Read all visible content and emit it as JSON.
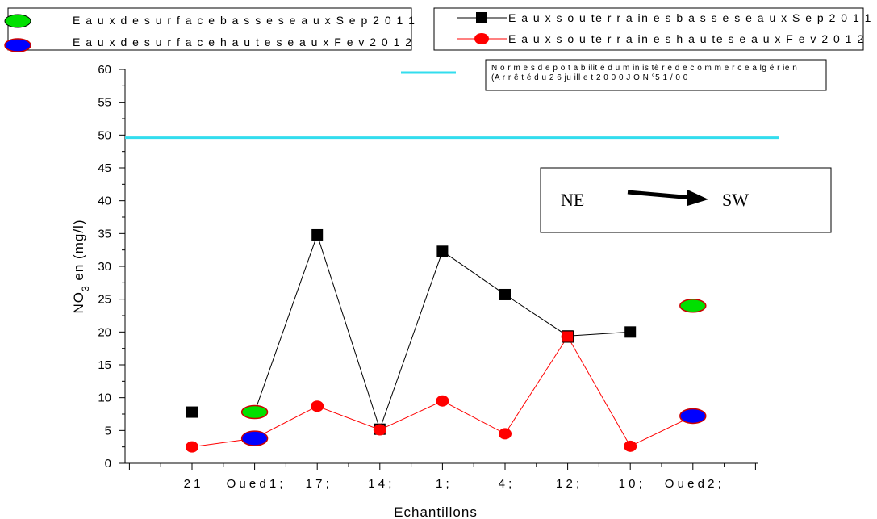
{
  "chart_data": {
    "type": "line",
    "ylabel_main": "NO",
    "ylabel_sub": "3",
    "ylabel_rest": " en (mg/l)",
    "xlabel": "Echantillons",
    "ylim": [
      0,
      60
    ],
    "y_ticks": [
      "0",
      "5",
      "10",
      "15",
      "20",
      "25",
      "30",
      "35",
      "40",
      "45",
      "50",
      "55",
      "60"
    ],
    "categories": [
      "21",
      "Oued 1;",
      "17;",
      "14;",
      "1;",
      "4;",
      "12;",
      "10;",
      "Oued 2;"
    ],
    "x_tick_labels": [
      "2 1",
      "O u e d  1 ;",
      "1 7 ;",
      "1 4 ;",
      "1 ;",
      "4 ;",
      "1 2 ;",
      "1 0 ;",
      "O u e d  2 ;"
    ],
    "series": [
      {
        "name": "E a u x  s o u te r r a in e s  b a s s e s  e a u x  S e p  2 0 1 1",
        "marker": "square",
        "color": "#000000",
        "values": [
          7.8,
          7.8,
          34.8,
          5.2,
          32.3,
          25.7,
          19.4,
          20.0,
          null
        ]
      },
      {
        "name": "E a u x  s o u te r r a in e s  h a u te s  e a u x  F e v  2 0 1 2",
        "marker": "circle",
        "color": "#ff0000",
        "values": [
          2.5,
          3.8,
          8.7,
          5.1,
          9.5,
          4.5,
          19.3,
          2.6,
          7.2
        ]
      },
      {
        "name": "E a u x  d e  s u r f a c e  b a s s e s  e a u x  S e p  2 0 1 1",
        "marker": "ellipse",
        "color": "#00e000",
        "values": [
          null,
          7.8,
          null,
          null,
          null,
          null,
          null,
          null,
          24.0
        ]
      },
      {
        "name": "E a u x  d e  s u r f a c e  h a u t e s  e a u x  F e v  2 0 1 2",
        "marker": "ellipse",
        "color": "#0000ff",
        "values": [
          null,
          3.8,
          null,
          null,
          null,
          null,
          null,
          null,
          7.2
        ]
      }
    ],
    "reference_line": {
      "value": 49.6,
      "color": "#33ddee",
      "label_line1": "N o r m e s  d e  p o t a b ilit é  d u  m in is tè r e  d e  c o m m e r c e  a lg é r ie n",
      "label_line2": "(A r r ê t é  d u  2 6  ju ill e t  2 0 0 0  J O  N °5 1 / 0 0"
    },
    "direction_box": {
      "from": "NE",
      "to": "SW"
    },
    "grid": false
  }
}
